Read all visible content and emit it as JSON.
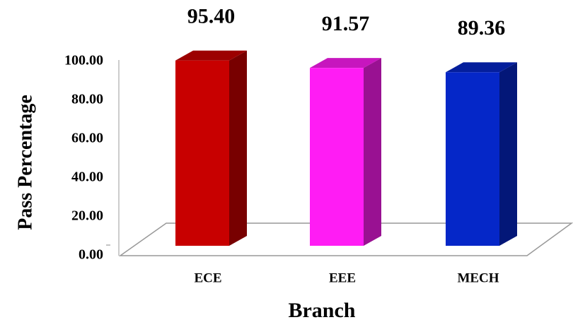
{
  "chart_data": {
    "type": "bar3d",
    "x_label": "Branch",
    "y_label": "Pass Percentage",
    "categories": [
      "ECE",
      "EEE",
      "MECH"
    ],
    "values": [
      95.4,
      91.57,
      89.36
    ],
    "value_labels": [
      "95.40",
      "91.57",
      "89.36"
    ],
    "colors": [
      "#c80000",
      "#ff1cf4",
      "#0527c8"
    ],
    "ylim": [
      0,
      100
    ],
    "yticks": [
      {
        "value": 0,
        "label": "0.00"
      },
      {
        "value": 20,
        "label": "20.00"
      },
      {
        "value": 40,
        "label": "40.00"
      },
      {
        "value": 60,
        "label": "60.00"
      },
      {
        "value": 80,
        "label": "80.00"
      },
      {
        "value": 100,
        "label": "100.00"
      }
    ]
  }
}
